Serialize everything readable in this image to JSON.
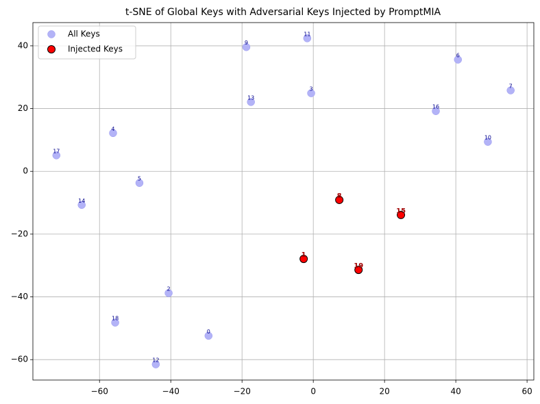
{
  "chart_data": {
    "type": "scatter",
    "title": "t-SNE of Global Keys with Adversarial Keys Injected by PromptMIA",
    "xlim": [
      -78.7,
      61.9
    ],
    "ylim": [
      -66.5,
      47.4
    ],
    "xticks": [
      {
        "value": -60,
        "label": "−60"
      },
      {
        "value": -40,
        "label": "−40"
      },
      {
        "value": -20,
        "label": "−20"
      },
      0,
      20,
      40,
      60
    ],
    "yticks": [
      {
        "value": -60,
        "label": "−60"
      },
      {
        "value": -40,
        "label": "−40"
      },
      {
        "value": -20,
        "label": "−20"
      },
      0,
      20,
      40
    ],
    "grid": true,
    "legend": "upper left",
    "series": [
      {
        "name": "All Keys",
        "color": "#b3b3f7",
        "labels": [
          "0",
          "2",
          "3",
          "4",
          "5",
          "6",
          "7",
          "9",
          "10",
          "11",
          "12",
          "13",
          "14",
          "16",
          "17",
          "18"
        ],
        "x": [
          -29.4,
          -40.6,
          -0.6,
          -56.2,
          -48.8,
          40.6,
          55.4,
          -18.8,
          49.0,
          -1.7,
          -44.2,
          -17.5,
          -65.0,
          34.4,
          -72.1,
          -55.6
        ],
        "values": [
          -52.4,
          -38.8,
          24.9,
          12.2,
          -3.7,
          35.6,
          25.8,
          39.6,
          9.4,
          42.4,
          -61.5,
          22.1,
          -10.7,
          19.2,
          5.1,
          -48.2
        ]
      },
      {
        "name": "Injected Keys",
        "color": "#ff0000",
        "labels": [
          "1",
          "8",
          "15",
          "19"
        ],
        "x": [
          -2.7,
          7.3,
          24.6,
          12.7
        ],
        "values": [
          -27.9,
          -9.1,
          -13.9,
          -31.4
        ]
      }
    ]
  }
}
